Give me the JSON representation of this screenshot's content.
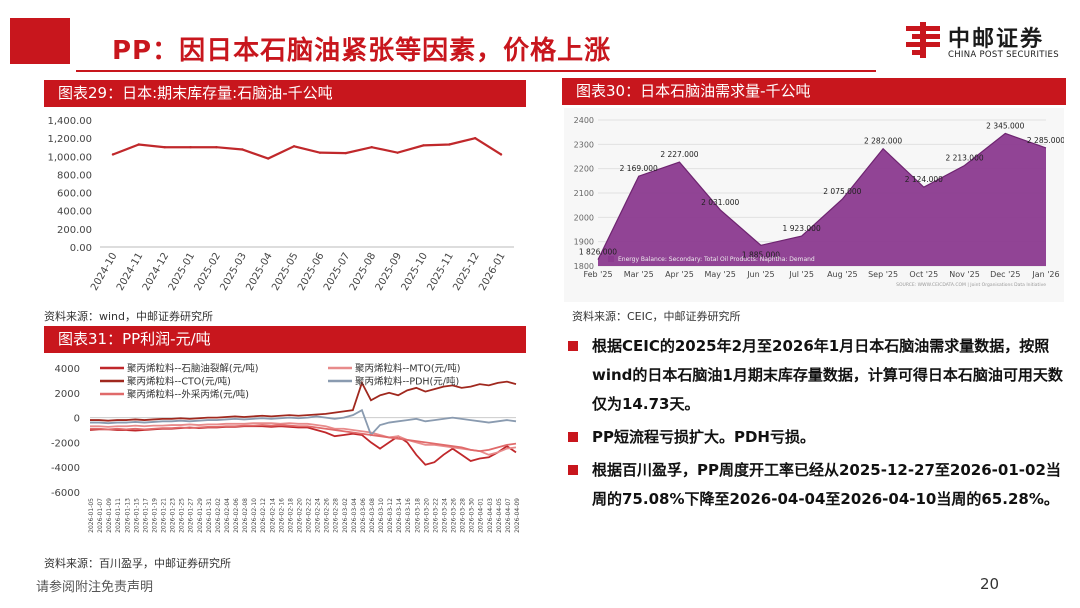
{
  "header": {
    "title": "PP：因日本石脑油紧张等因素，价格上涨",
    "logo_cn": "中邮证券",
    "logo_en": "CHINA POST SECURITIES"
  },
  "panels": {
    "chart29_title": "图表29：日本:期末库存量:石脑油-千公吨",
    "chart29_source": "资料来源：wind，中邮证券研究所",
    "chart30_title": "图表30：日本石脑油需求量-千公吨",
    "chart30_source": "资料来源：CEIC，中邮证券研究所",
    "chart31_title": "图表31：PP利润-元/吨",
    "chart31_source": "资料来源：百川盈孚，中邮证券研究所"
  },
  "bullets": [
    "根据CEIC的2025年2月至2026年1月日本石脑油需求量数据，按照wind的日本石脑油1月期末库存量数据，计算可得日本石脑油可用天数仅为14.73天。",
    "PP短流程亏损扩大。PDH亏损。",
    "根据百川盈孚，PP周度开工率已经从2025-12-27至2026-01-02当周的75.08%下降至2026-04-04至2026-04-10当周的65.28%。"
  ],
  "footer": {
    "disclaimer": "请参阅附注免责声明",
    "page": "20"
  },
  "colors": {
    "brand": "#c8161d",
    "purple": "#8b3a8f",
    "line_red": "#c0282b"
  },
  "chart_data": [
    {
      "type": "line",
      "x": [
        "2024-10",
        "2024-11",
        "2024-12",
        "2025-01",
        "2025-02",
        "2025-03",
        "2025-04",
        "2025-05",
        "2025-06",
        "2025-07",
        "2025-08",
        "2025-09",
        "2025-10",
        "2025-11",
        "2025-12",
        "2026-01"
      ],
      "series": [
        {
          "values": [
            1020,
            1130,
            1100,
            1100,
            1100,
            1075,
            975,
            1110,
            1040,
            1035,
            1100,
            1040,
            1120,
            1130,
            1200,
            1020
          ]
        }
      ],
      "yticks": [
        "1,400.00",
        "1,200.00",
        "1,000.00",
        "800.00",
        "600.00",
        "400.00",
        "200.00",
        "0.00"
      ],
      "ylim": [
        0,
        1400
      ]
    },
    {
      "type": "area",
      "x": [
        "Feb '25",
        "Mar '25",
        "Apr '25",
        "May '25",
        "Jun '25",
        "Jul '25",
        "Aug '25",
        "Sep '25",
        "Oct '25",
        "Nov '25",
        "Dec '25",
        "Jan '26"
      ],
      "series": [
        {
          "name": "Energy Balance: Secondary: Total Oil Products: Naphtha: Demand",
          "values": [
            1826,
            2169,
            2227,
            2031,
            1885,
            1923,
            2075,
            2282,
            2124,
            2213,
            2345,
            2285
          ]
        }
      ],
      "data_labels": [
        "1 826.000",
        "2 169.000",
        "2 227.000",
        "2 031.000",
        "1 885.000",
        "1 923.000",
        "2 075.000",
        "2 282.000",
        "2 124.000",
        "2 213.000",
        "2 345.000",
        "2 285.000"
      ],
      "yticks": [
        "2400",
        "2300",
        "2200",
        "2100",
        "2000",
        "1900",
        "1800"
      ],
      "ylim": [
        1800,
        2400
      ],
      "footnote": "SOURCE: WWW.CEICDATA.COM | Joint Organisations Data Initiative"
    },
    {
      "type": "line",
      "yticks": [
        "4000",
        "2000",
        "0",
        "-2000",
        "-4000",
        "-6000"
      ],
      "ylim": [
        -6000,
        4000
      ],
      "x": [
        "2026-01-05",
        "2026-01-07",
        "2026-01-09",
        "2026-01-11",
        "2026-01-13",
        "2026-01-15",
        "2026-01-17",
        "2026-01-19",
        "2026-01-21",
        "2026-01-23",
        "2026-01-25",
        "2026-01-27",
        "2026-01-29",
        "2026-01-31",
        "2026-02-02",
        "2026-02-04",
        "2026-02-06",
        "2026-02-08",
        "2026-02-10",
        "2026-02-12",
        "2026-02-14",
        "2026-02-16",
        "2026-02-18",
        "2026-02-20",
        "2026-02-22",
        "2026-02-24",
        "2026-02-26",
        "2026-02-28",
        "2026-03-02",
        "2026-03-04",
        "2026-03-06",
        "2026-03-08",
        "2026-03-10",
        "2026-03-12",
        "2026-03-14",
        "2026-03-16",
        "2026-03-18",
        "2026-03-20",
        "2026-03-22",
        "2026-03-24",
        "2026-03-26",
        "2026-03-28",
        "2026-03-30",
        "2026-04-01",
        "2026-04-03",
        "2026-04-05",
        "2026-04-07",
        "2026-04-09"
      ],
      "series": [
        {
          "name": "聚丙烯粒料--石脑油裂解(元/吨)",
          "values": [
            -1000,
            -950,
            -950,
            -1000,
            -1000,
            -1050,
            -1000,
            -950,
            -900,
            -900,
            -850,
            -800,
            -850,
            -800,
            -800,
            -750,
            -750,
            -700,
            -700,
            -700,
            -750,
            -700,
            -750,
            -800,
            -800,
            -1000,
            -1200,
            -1500,
            -1400,
            -1300,
            -1400,
            -2000,
            -2500,
            -2000,
            -1500,
            -2000,
            -3000,
            -3800,
            -3600,
            -3000,
            -2500,
            -3000,
            -3500,
            -3300,
            -3200,
            -2800,
            -2300,
            -2800
          ]
        },
        {
          "name": "聚丙烯粒料--MTO(元/吨)",
          "values": [
            -700,
            -700,
            -750,
            -700,
            -700,
            -650,
            -700,
            -650,
            -650,
            -600,
            -600,
            -550,
            -600,
            -550,
            -550,
            -500,
            -500,
            -500,
            -450,
            -450,
            -450,
            -500,
            -450,
            -500,
            -500,
            -600,
            -700,
            -900,
            -900,
            -1000,
            -1100,
            -1200,
            -1400,
            -1600,
            -1500,
            -1800,
            -2000,
            -2200,
            -2200,
            -2300,
            -2400,
            -2500,
            -2600,
            -2700,
            -3000,
            -2800,
            -2500,
            -2400
          ]
        },
        {
          "name": "聚丙烯粒料--CTO(元/吨)",
          "values": [
            -200,
            -200,
            -250,
            -200,
            -200,
            -150,
            -200,
            -150,
            -100,
            -100,
            -50,
            -100,
            -50,
            0,
            0,
            50,
            100,
            50,
            100,
            150,
            100,
            150,
            200,
            150,
            200,
            250,
            300,
            400,
            500,
            600,
            2800,
            1400,
            1800,
            2000,
            1800,
            2200,
            2400,
            2100,
            2300,
            2500,
            2600,
            2400,
            2500,
            2700,
            2600,
            2800,
            2900,
            2700
          ]
        },
        {
          "name": "聚丙烯粒料--PDH(元/吨)",
          "values": [
            -400,
            -400,
            -450,
            -400,
            -400,
            -350,
            -400,
            -350,
            -300,
            -300,
            -250,
            -300,
            -250,
            -200,
            -200,
            -150,
            -100,
            -150,
            -100,
            -50,
            -100,
            -50,
            0,
            -50,
            0,
            100,
            0,
            -100,
            0,
            200,
            600,
            -1400,
            -600,
            -400,
            -300,
            -200,
            -100,
            -300,
            -200,
            -100,
            0,
            -100,
            -200,
            -300,
            -400,
            -300,
            -200,
            -300
          ]
        },
        {
          "name": "聚丙烯粒料--外采丙烯(元/吨)",
          "values": [
            -900,
            -900,
            -950,
            -900,
            -950,
            -900,
            -950,
            -900,
            -850,
            -850,
            -800,
            -850,
            -800,
            -750,
            -750,
            -700,
            -700,
            -650,
            -650,
            -600,
            -650,
            -600,
            -650,
            -700,
            -700,
            -800,
            -900,
            -1000,
            -1100,
            -1200,
            -1300,
            -1400,
            -1500,
            -1600,
            -1700,
            -1800,
            -1900,
            -2000,
            -2100,
            -2200,
            -2300,
            -2400,
            -2600,
            -2700,
            -2600,
            -2400,
            -2200,
            -2100
          ]
        }
      ],
      "series_colors": [
        "#c0282b",
        "#e88b8b",
        "#a0281e",
        "#8a9bb0",
        "#e06a6a"
      ]
    }
  ]
}
